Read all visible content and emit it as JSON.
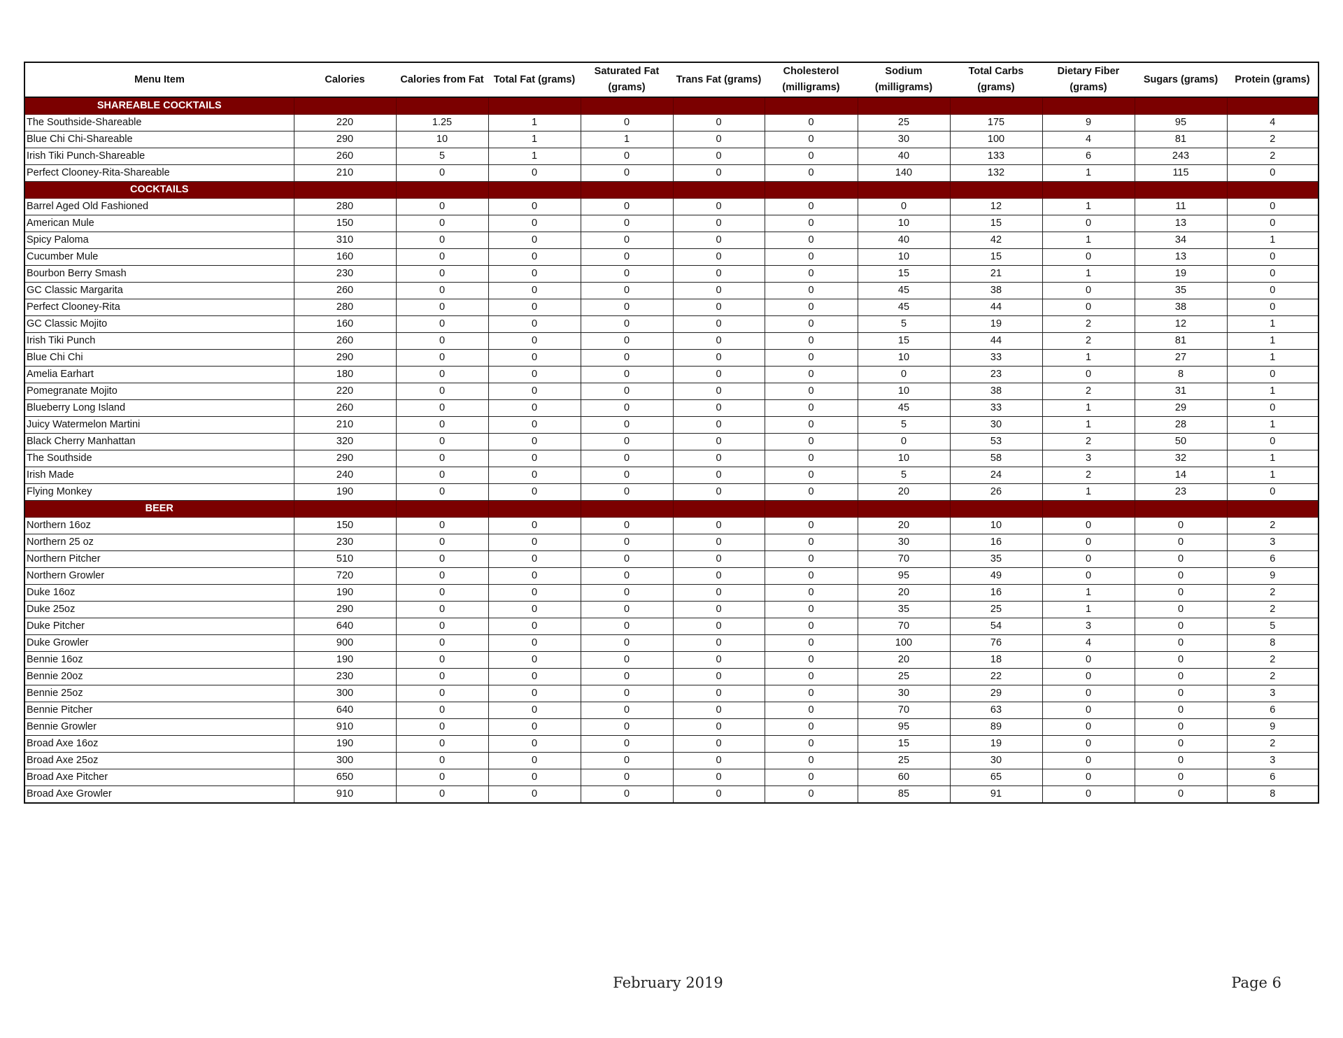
{
  "table": {
    "columns": [
      "Menu Item",
      "Calories",
      "Calories from Fat",
      "Total Fat (grams)",
      "Saturated Fat (grams)",
      "Trans Fat (grams)",
      "Cholesterol (milligrams)",
      "Sodium (milligrams)",
      "Total Carbs (grams)",
      "Dietary Fiber (grams)",
      "Sugars (grams)",
      "Protein (grams)"
    ],
    "sections": [
      {
        "title": "SHAREABLE COCKTAILS",
        "rows": [
          [
            "The Southside-Shareable",
            "220",
            "1.25",
            "1",
            "0",
            "0",
            "0",
            "25",
            "175",
            "9",
            "95",
            "4"
          ],
          [
            "Blue Chi Chi-Shareable",
            "290",
            "10",
            "1",
            "1",
            "0",
            "0",
            "30",
            "100",
            "4",
            "81",
            "2"
          ],
          [
            "Irish Tiki Punch-Shareable",
            "260",
            "5",
            "1",
            "0",
            "0",
            "0",
            "40",
            "133",
            "6",
            "243",
            "2"
          ],
          [
            "Perfect Clooney-Rita-Shareable",
            "210",
            "0",
            "0",
            "0",
            "0",
            "0",
            "140",
            "132",
            "1",
            "115",
            "0"
          ]
        ]
      },
      {
        "title": "COCKTAILS",
        "rows": [
          [
            "Barrel Aged Old Fashioned",
            "280",
            "0",
            "0",
            "0",
            "0",
            "0",
            "0",
            "12",
            "1",
            "11",
            "0"
          ],
          [
            "American Mule",
            "150",
            "0",
            "0",
            "0",
            "0",
            "0",
            "10",
            "15",
            "0",
            "13",
            "0"
          ],
          [
            "Spicy Paloma",
            "310",
            "0",
            "0",
            "0",
            "0",
            "0",
            "40",
            "42",
            "1",
            "34",
            "1"
          ],
          [
            "Cucumber Mule",
            "160",
            "0",
            "0",
            "0",
            "0",
            "0",
            "10",
            "15",
            "0",
            "13",
            "0"
          ],
          [
            "Bourbon Berry Smash",
            "230",
            "0",
            "0",
            "0",
            "0",
            "0",
            "15",
            "21",
            "1",
            "19",
            "0"
          ],
          [
            "GC Classic Margarita",
            "260",
            "0",
            "0",
            "0",
            "0",
            "0",
            "45",
            "38",
            "0",
            "35",
            "0"
          ],
          [
            "Perfect Clooney-Rita",
            "280",
            "0",
            "0",
            "0",
            "0",
            "0",
            "45",
            "44",
            "0",
            "38",
            "0"
          ],
          [
            "GC Classic Mojito",
            "160",
            "0",
            "0",
            "0",
            "0",
            "0",
            "5",
            "19",
            "2",
            "12",
            "1"
          ],
          [
            "Irish Tiki Punch",
            "260",
            "0",
            "0",
            "0",
            "0",
            "0",
            "15",
            "44",
            "2",
            "81",
            "1"
          ],
          [
            "Blue Chi Chi",
            "290",
            "0",
            "0",
            "0",
            "0",
            "0",
            "10",
            "33",
            "1",
            "27",
            "1"
          ],
          [
            "Amelia Earhart",
            "180",
            "0",
            "0",
            "0",
            "0",
            "0",
            "0",
            "23",
            "0",
            "8",
            "0"
          ],
          [
            "Pomegranate Mojito",
            "220",
            "0",
            "0",
            "0",
            "0",
            "0",
            "10",
            "38",
            "2",
            "31",
            "1"
          ],
          [
            "Blueberry Long Island",
            "260",
            "0",
            "0",
            "0",
            "0",
            "0",
            "45",
            "33",
            "1",
            "29",
            "0"
          ],
          [
            "Juicy Watermelon Martini",
            "210",
            "0",
            "0",
            "0",
            "0",
            "0",
            "5",
            "30",
            "1",
            "28",
            "1"
          ],
          [
            "Black Cherry Manhattan",
            "320",
            "0",
            "0",
            "0",
            "0",
            "0",
            "0",
            "53",
            "2",
            "50",
            "0"
          ],
          [
            "The Southside",
            "290",
            "0",
            "0",
            "0",
            "0",
            "0",
            "10",
            "58",
            "3",
            "32",
            "1"
          ],
          [
            "Irish Made",
            "240",
            "0",
            "0",
            "0",
            "0",
            "0",
            "5",
            "24",
            "2",
            "14",
            "1"
          ],
          [
            "Flying Monkey",
            "190",
            "0",
            "0",
            "0",
            "0",
            "0",
            "20",
            "26",
            "1",
            "23",
            "0"
          ]
        ]
      },
      {
        "title": "BEER",
        "rows": [
          [
            "Northern 16oz",
            "150",
            "0",
            "0",
            "0",
            "0",
            "0",
            "20",
            "10",
            "0",
            "0",
            "2"
          ],
          [
            "Northern 25 oz",
            "230",
            "0",
            "0",
            "0",
            "0",
            "0",
            "30",
            "16",
            "0",
            "0",
            "3"
          ],
          [
            "Northern Pitcher",
            "510",
            "0",
            "0",
            "0",
            "0",
            "0",
            "70",
            "35",
            "0",
            "0",
            "6"
          ],
          [
            "Northern Growler",
            "720",
            "0",
            "0",
            "0",
            "0",
            "0",
            "95",
            "49",
            "0",
            "0",
            "9"
          ],
          [
            "Duke 16oz",
            "190",
            "0",
            "0",
            "0",
            "0",
            "0",
            "20",
            "16",
            "1",
            "0",
            "2"
          ],
          [
            "Duke 25oz",
            "290",
            "0",
            "0",
            "0",
            "0",
            "0",
            "35",
            "25",
            "1",
            "0",
            "2"
          ],
          [
            "Duke Pitcher",
            "640",
            "0",
            "0",
            "0",
            "0",
            "0",
            "70",
            "54",
            "3",
            "0",
            "5"
          ],
          [
            "Duke Growler",
            "900",
            "0",
            "0",
            "0",
            "0",
            "0",
            "100",
            "76",
            "4",
            "0",
            "8"
          ],
          [
            "Bennie 16oz",
            "190",
            "0",
            "0",
            "0",
            "0",
            "0",
            "20",
            "18",
            "0",
            "0",
            "2"
          ],
          [
            "Bennie 20oz",
            "230",
            "0",
            "0",
            "0",
            "0",
            "0",
            "25",
            "22",
            "0",
            "0",
            "2"
          ],
          [
            "Bennie 25oz",
            "300",
            "0",
            "0",
            "0",
            "0",
            "0",
            "30",
            "29",
            "0",
            "0",
            "3"
          ],
          [
            "Bennie Pitcher",
            "640",
            "0",
            "0",
            "0",
            "0",
            "0",
            "70",
            "63",
            "0",
            "0",
            "6"
          ],
          [
            "Bennie Growler",
            "910",
            "0",
            "0",
            "0",
            "0",
            "0",
            "95",
            "89",
            "0",
            "0",
            "9"
          ],
          [
            "Broad Axe 16oz",
            "190",
            "0",
            "0",
            "0",
            "0",
            "0",
            "15",
            "19",
            "0",
            "0",
            "2"
          ],
          [
            "Broad Axe 25oz",
            "300",
            "0",
            "0",
            "0",
            "0",
            "0",
            "25",
            "30",
            "0",
            "0",
            "3"
          ],
          [
            "Broad Axe Pitcher",
            "650",
            "0",
            "0",
            "0",
            "0",
            "0",
            "60",
            "65",
            "0",
            "0",
            "6"
          ],
          [
            "Broad Axe Growler",
            "910",
            "0",
            "0",
            "0",
            "0",
            "0",
            "85",
            "91",
            "0",
            "0",
            "8"
          ]
        ]
      }
    ]
  },
  "footer": {
    "date": "February 2019",
    "page": "Page 6"
  },
  "colors": {
    "section_bg": "#7b0000",
    "section_text": "#ffffff"
  }
}
